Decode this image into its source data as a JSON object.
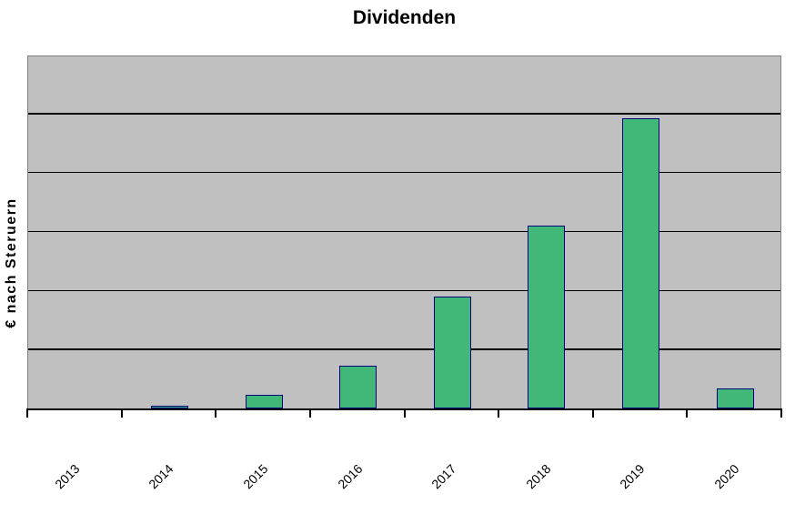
{
  "chart_data": {
    "type": "bar",
    "title": "Dividenden",
    "ylabel": "€ nach Steruern",
    "xlabel": "",
    "categories": [
      "2013",
      "2014",
      "2015",
      "2016",
      "2017",
      "2018",
      "2019",
      "2020"
    ],
    "values": [
      0,
      0.05,
      0.23,
      0.73,
      1.9,
      3.1,
      4.92,
      0.34
    ],
    "value_unit": "gridline-intervals (no y-axis tick labels visible on chart)",
    "ylim": [
      0,
      6
    ],
    "gridline_interval": 1,
    "y_tick_labels": [],
    "grid": "horizontal",
    "legend": "none",
    "x_labels_rotation_deg": -45,
    "colors": {
      "bar_fill": "#41B878",
      "bar_border": "#000080",
      "plot_bg": "#C0C0C0",
      "plot_border": "#808080",
      "gridline": "#000000",
      "axis": "#000000",
      "background": "#FFFFFF",
      "text": "#000000"
    }
  }
}
